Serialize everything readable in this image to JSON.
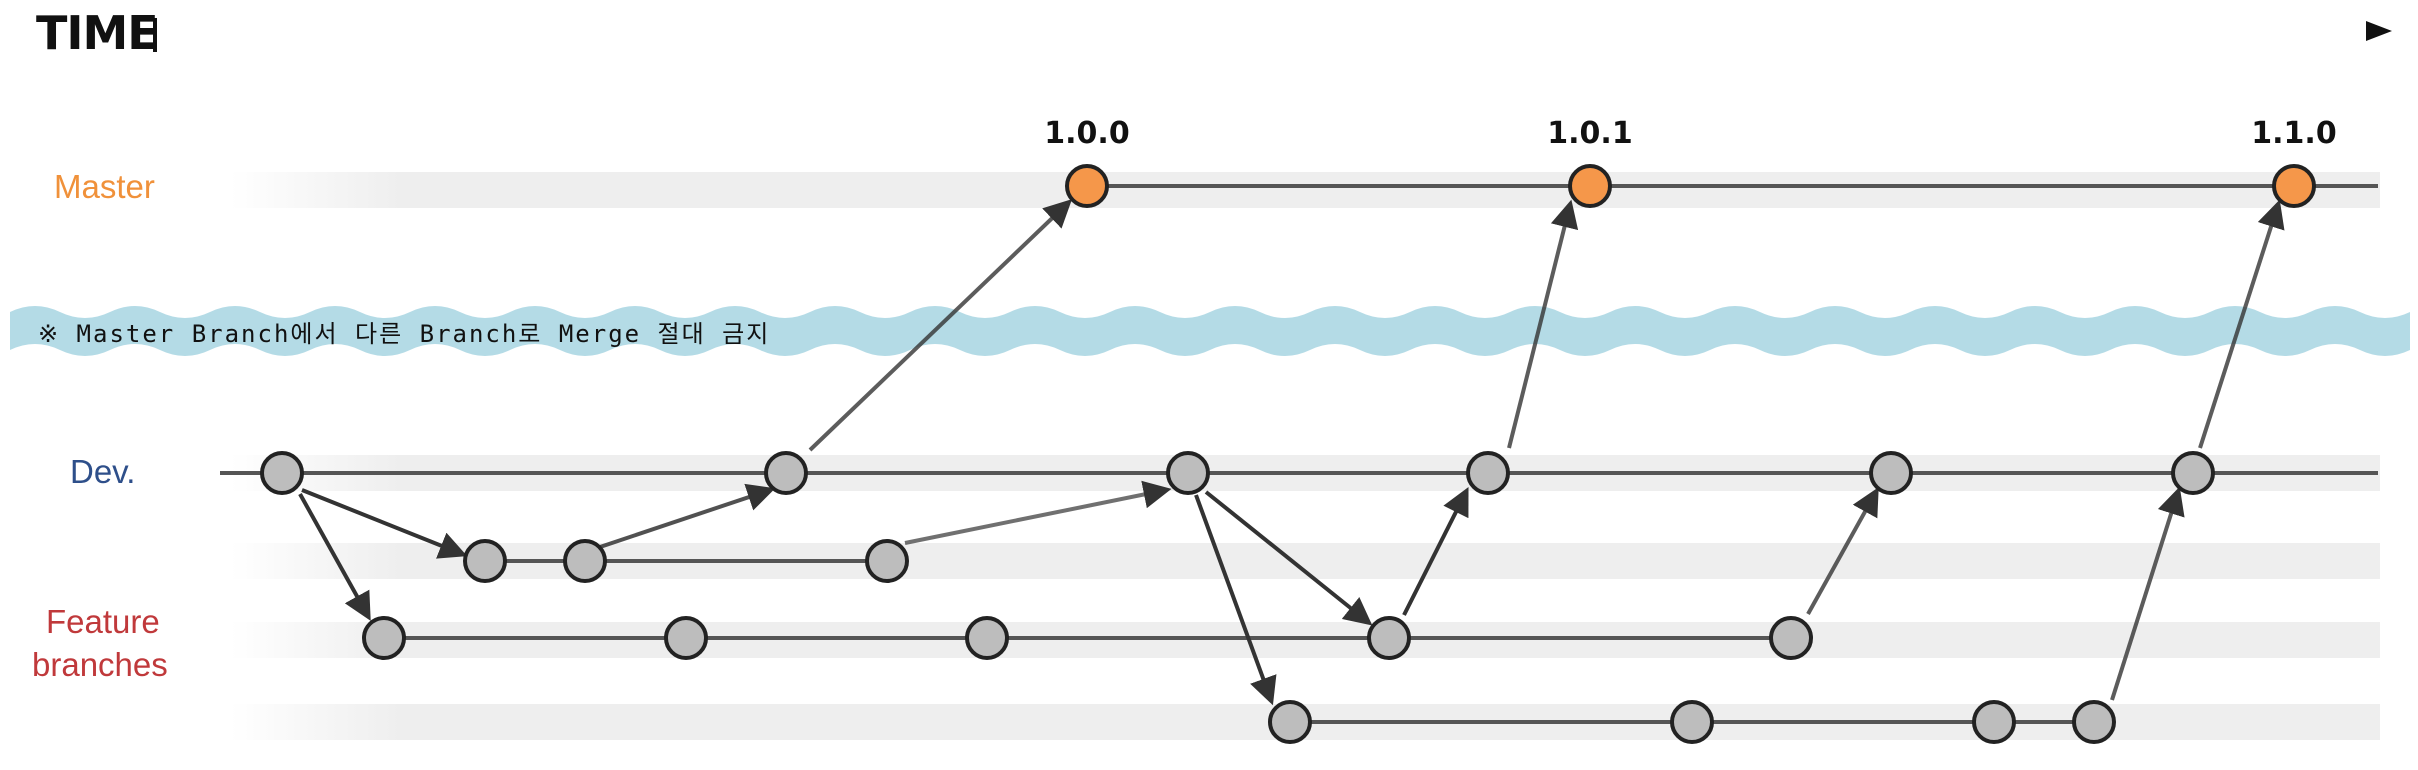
{
  "header": {
    "time_label": "TIME"
  },
  "lanes": {
    "master": {
      "label": "Master",
      "color": "#f0913a"
    },
    "dev": {
      "label": "Dev.",
      "color": "#2e4f8a"
    },
    "feature": {
      "label_line1": "Feature",
      "label_line2": "branches",
      "color": "#c0393b"
    }
  },
  "notice": {
    "text": "※ Master Branch에서 다른 Branch로 Merge 절대 금지",
    "band_color": "#b4dbe6"
  },
  "versions": [
    "1.0.0",
    "1.0.1",
    "1.1.0"
  ],
  "colors": {
    "release_node": "#f5974a",
    "commit_node": "#bdbdbd",
    "line": "#555555",
    "track": "#eeeeee"
  }
}
